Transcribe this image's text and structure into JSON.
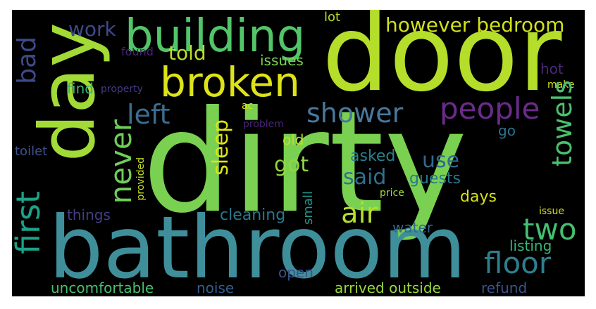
{
  "words": {
    "dirty": "dirty",
    "door": "door",
    "day": "day",
    "bathroom": "bathroom",
    "building": "building",
    "broken": "broken",
    "people": "people",
    "shower": "shower",
    "left": "left",
    "air": "air",
    "floor": "floor",
    "two": "two",
    "said": "said",
    "got": "got",
    "use": "use",
    "told": "told",
    "work": "work",
    "however_bedroom": "however bedroom",
    "issues": "issues",
    "lot": "lot",
    "found": "found",
    "hot": "hot",
    "make": "make",
    "find": "find",
    "property": "property",
    "ac": "ac",
    "problem": "problem",
    "go": "go",
    "old": "old",
    "asked": "asked",
    "guests": "guests",
    "toilet": "toilet",
    "days": "days",
    "price": "price",
    "things": "things",
    "cleaning": "cleaning",
    "water": "water",
    "issue": "issue",
    "listing": "listing",
    "open": "open",
    "uncomfortable": "uncomfortable",
    "noise": "noise",
    "arrived_outside": "arrived outside",
    "refund": "refund",
    "bad": "bad",
    "first": "first",
    "never": "never",
    "sleep": "sleep",
    "towels": "towels",
    "small": "small",
    "provided": "provided"
  },
  "colors": {
    "background": "#000000",
    "frame": "#ffffff"
  }
}
